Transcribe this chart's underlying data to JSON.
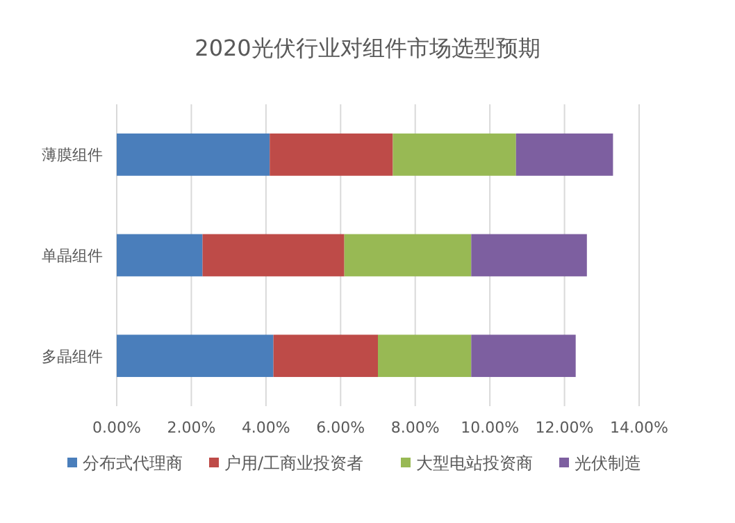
{
  "chart_data": {
    "type": "bar",
    "orientation": "horizontal",
    "stacked": true,
    "title": "2020光伏行业对组件市场选型预期",
    "categories": [
      "薄膜组件",
      "单晶组件",
      "多晶组件"
    ],
    "series": [
      {
        "name": "分布式代理商",
        "color": "#4a7ebb",
        "values": [
          4.1,
          2.3,
          4.2
        ]
      },
      {
        "name": "户用/工商业投资者",
        "color": "#be4b48",
        "values": [
          3.3,
          3.8,
          2.8
        ]
      },
      {
        "name": "大型电站投资商",
        "color": "#98b954",
        "values": [
          3.3,
          3.4,
          2.5
        ]
      },
      {
        "name": "光伏制造",
        "color": "#7d5fa0",
        "values": [
          2.6,
          3.1,
          2.8
        ]
      }
    ],
    "xlim": [
      0,
      14
    ],
    "xticks": [
      {
        "value": 0,
        "label": "0.00%"
      },
      {
        "value": 2,
        "label": "2.00%"
      },
      {
        "value": 4,
        "label": "4.00%"
      },
      {
        "value": 6,
        "label": "6.00%"
      },
      {
        "value": 8,
        "label": "8.00%"
      },
      {
        "value": 10,
        "label": "10.00%"
      },
      {
        "value": 12,
        "label": "12.00%"
      },
      {
        "value": 14,
        "label": "14.00%"
      }
    ],
    "grid": "x",
    "legend": "bottom"
  }
}
